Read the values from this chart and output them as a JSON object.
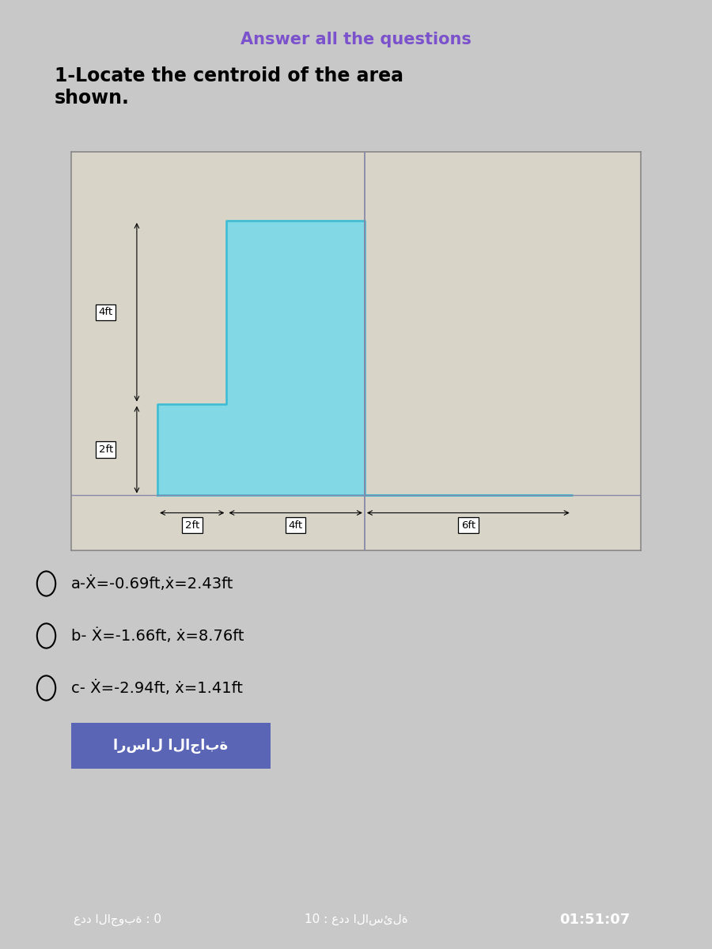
{
  "title": "Answer all the questions",
  "question": "1-Locate the centroid of the area\nshown.",
  "shape_vertices_x": [
    0,
    0,
    2,
    2,
    6,
    6,
    12,
    0
  ],
  "shape_vertices_y": [
    0,
    2,
    2,
    6,
    6,
    0,
    0,
    0
  ],
  "shape_color": "#7FD9E8",
  "shape_edge_color": "#3BBBD4",
  "bg_color": "#C8C8C8",
  "plot_bg_color": "#E8E4DC",
  "inner_bg_color": "#D8D4C8",
  "options_texts": [
    "a-Ẋ=-0.69ft,ẋ=2.43ft",
    "b- Ẋ=-1.66ft, ẋ=8.76ft",
    "c- Ẋ=-2.94ft, ẋ=1.41ft"
  ],
  "button_text": "ارسال الاجابة",
  "footer_left": "عدد الاجوبة : 0",
  "footer_mid": "10 : عدد الاسئلة",
  "footer_right": "01:51:07",
  "footer_left_bg": "#555555",
  "footer_mid_bg": "#555555",
  "footer_right_bg": "#4CAF50",
  "title_color": "#7B52CC",
  "vertical_line_color": "#8888AA",
  "horizontal_line_color": "#8888AA"
}
